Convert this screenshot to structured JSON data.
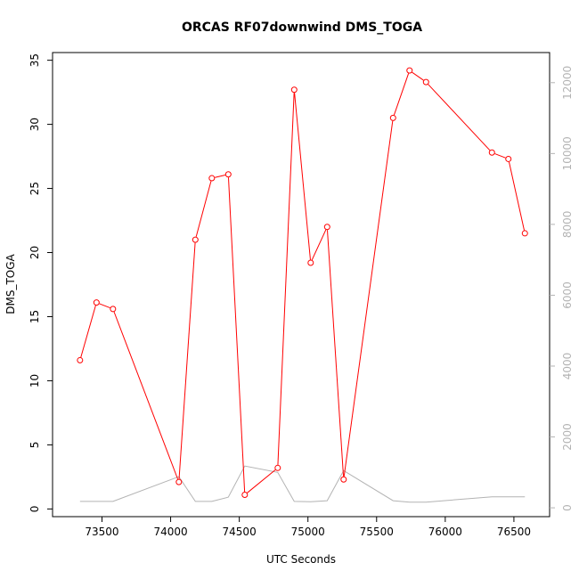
{
  "chart_data": {
    "type": "line",
    "title": "ORCAS RF07downwind DMS_TOGA",
    "xlabel": "UTC Seconds",
    "ylabel": "DMS_TOGA",
    "xlim": [
      73140,
      76760
    ],
    "ylim": [
      -0.6,
      35.6
    ],
    "y2lim": [
      -250,
      12850
    ],
    "grid": false,
    "x_ticks": [
      73500,
      74000,
      74500,
      75000,
      75500,
      76000,
      76500
    ],
    "y_ticks": [
      0,
      5,
      10,
      15,
      20,
      25,
      30,
      35
    ],
    "y2_ticks": [
      0,
      2000,
      4000,
      6000,
      8000,
      10000,
      12000
    ],
    "series": [
      {
        "role": "primary",
        "color": "#ff0000",
        "x": [
          73340,
          73460,
          73580,
          74060,
          74180,
          74300,
          74420,
          74540,
          74780,
          74900,
          75020,
          75140,
          75260,
          75620,
          75740,
          75860,
          76340,
          76460,
          76580
        ],
        "values": [
          11.6,
          16.1,
          15.6,
          2.1,
          21.0,
          25.8,
          26.1,
          1.1,
          3.2,
          32.7,
          19.2,
          22.0,
          2.3,
          30.5,
          34.2,
          33.3,
          27.8,
          27.3,
          21.5
        ]
      },
      {
        "role": "secondary",
        "color": "#b3b3b3",
        "x": [
          73340,
          73580,
          74060,
          74180,
          74300,
          74420,
          74540,
          74780,
          74900,
          75020,
          75140,
          75260,
          75620,
          75740,
          75860,
          76340,
          76580
        ],
        "values": [
          180,
          180,
          880,
          180,
          180,
          300,
          1180,
          1000,
          180,
          170,
          200,
          1050,
          200,
          160,
          160,
          310,
          310
        ]
      }
    ]
  }
}
